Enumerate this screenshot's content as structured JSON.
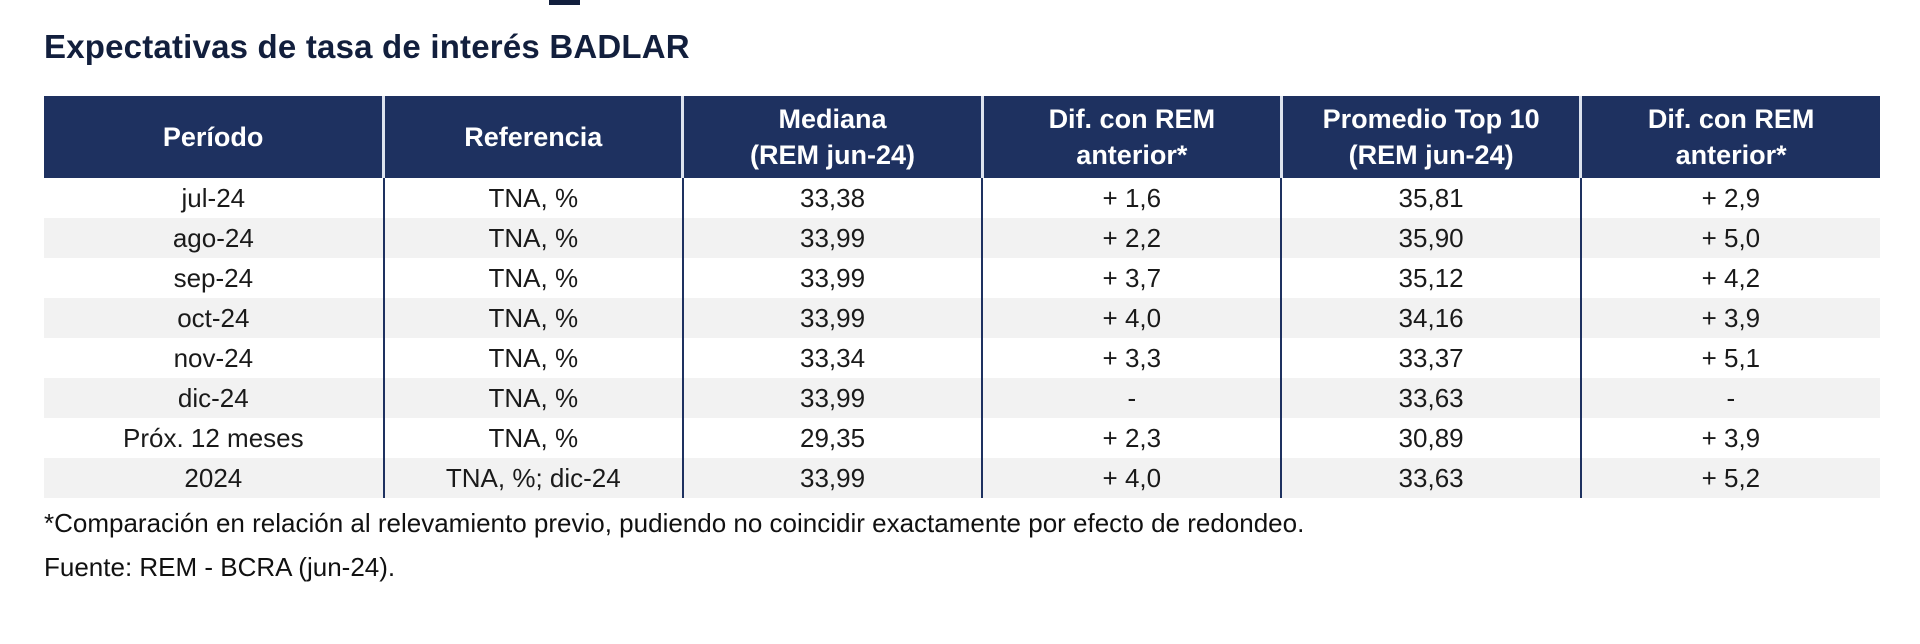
{
  "title": "Expectativas de tasa de interés BADLAR",
  "chart_data": {
    "type": "table",
    "title": "Expectativas de tasa de interés BADLAR",
    "columns": [
      "Período",
      "Referencia",
      "Mediana\n(REM jun-24)",
      "Dif. con REM\nanterior*",
      "Promedio Top 10\n(REM jun-24)",
      "Dif. con REM\nanterior*"
    ],
    "rows": [
      [
        "jul-24",
        "TNA, %",
        "33,38",
        "+ 1,6",
        "35,81",
        "+ 2,9"
      ],
      [
        "ago-24",
        "TNA, %",
        "33,99",
        "+ 2,2",
        "35,90",
        "+ 5,0"
      ],
      [
        "sep-24",
        "TNA, %",
        "33,99",
        "+ 3,7",
        "35,12",
        "+ 4,2"
      ],
      [
        "oct-24",
        "TNA, %",
        "33,99",
        "+ 4,0",
        "34,16",
        "+ 3,9"
      ],
      [
        "nov-24",
        "TNA, %",
        "33,34",
        "+ 3,3",
        "33,37",
        "+ 5,1"
      ],
      [
        "dic-24",
        "TNA, %",
        "33,99",
        "-",
        "33,63",
        "-"
      ],
      [
        "Próx. 12 meses",
        "TNA, %",
        "29,35",
        "+ 2,3",
        "30,89",
        "+ 3,9"
      ],
      [
        "2024",
        "TNA, %; dic-24",
        "33,99",
        "+ 4,0",
        "33,63",
        "+ 5,2"
      ]
    ],
    "footnote": "*Comparación en relación al relevamiento previo, pudiendo no coincidir exactamente por efecto de redondeo.",
    "source": "Fuente: REM - BCRA (jun-24)."
  },
  "colors": {
    "header_bg": "#1e3160",
    "header_text": "#ffffff",
    "stripe": "#f2f2f2",
    "title_text": "#121f3d",
    "body_separator": "#1e3160",
    "header_separator": "#dde3ee"
  }
}
